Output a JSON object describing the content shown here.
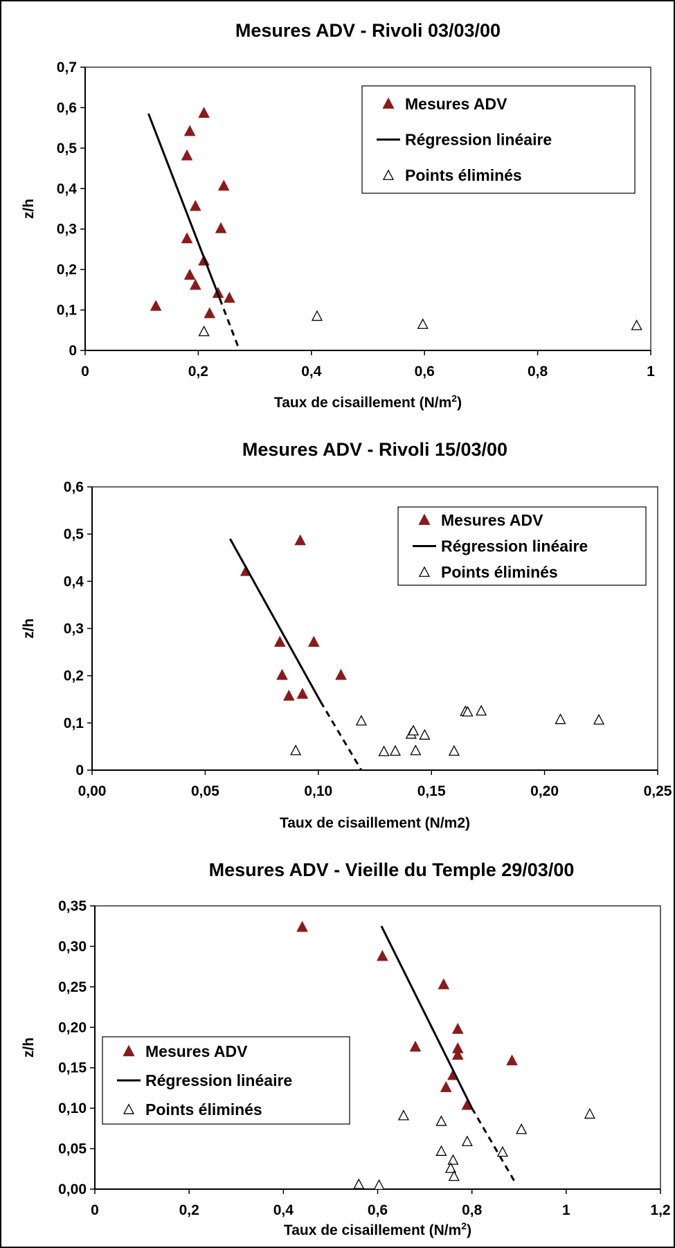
{
  "chart_data": [
    {
      "type": "scatter",
      "title": "Mesures ADV - Rivoli 03/03/00",
      "xlabel": "Taux de cisaillement (N/m",
      "xlabel_sup": "2",
      "xlabel_end": ")",
      "ylabel": "z/h",
      "xlim": [
        0,
        1
      ],
      "ylim": [
        0,
        0.7
      ],
      "xticks": [
        0,
        0.2,
        0.4,
        0.6,
        0.8,
        1
      ],
      "xtick_labels": [
        "0",
        "0,2",
        "0,4",
        "0,6",
        "0,8",
        "1"
      ],
      "yticks": [
        0,
        0.1,
        0.2,
        0.3,
        0.4,
        0.5,
        0.6,
        0.7
      ],
      "ytick_labels": [
        "0",
        "0,1",
        "0,2",
        "0,3",
        "0,4",
        "0,5",
        "0,6",
        "0,7"
      ],
      "legend_position": "top-right",
      "grid": false,
      "series": [
        {
          "name": "Mesures ADV",
          "marker": "filled-triangle",
          "color": "#8B1A1A",
          "points": [
            [
              0.21,
              0.585
            ],
            [
              0.185,
              0.54
            ],
            [
              0.18,
              0.48
            ],
            [
              0.245,
              0.405
            ],
            [
              0.195,
              0.355
            ],
            [
              0.24,
              0.3
            ],
            [
              0.18,
              0.275
            ],
            [
              0.21,
              0.22
            ],
            [
              0.185,
              0.185
            ],
            [
              0.195,
              0.16
            ],
            [
              0.235,
              0.14
            ],
            [
              0.255,
              0.128
            ],
            [
              0.125,
              0.108
            ],
            [
              0.22,
              0.09
            ]
          ]
        },
        {
          "name": "Régression linéaire",
          "marker": "line",
          "color": "#000000",
          "solid": [
            [
              0.112,
              0.585
            ],
            [
              0.238,
              0.128
            ]
          ],
          "dashed": [
            [
              0.238,
              0.128
            ],
            [
              0.273,
              0.0
            ]
          ]
        },
        {
          "name": "Points éliminés",
          "marker": "open-triangle",
          "color": "#000000",
          "points": [
            [
              0.21,
              0.045
            ],
            [
              0.41,
              0.083
            ],
            [
              0.597,
              0.063
            ],
            [
              0.975,
              0.06
            ]
          ]
        }
      ]
    },
    {
      "type": "scatter",
      "title": "Mesures ADV - Rivoli 15/03/00",
      "xlabel": "Taux de cisaillement (N/m2)",
      "ylabel": "z/h",
      "xlim": [
        0,
        0.25
      ],
      "ylim": [
        0,
        0.6
      ],
      "xticks": [
        0,
        0.05,
        0.1,
        0.15,
        0.2,
        0.25
      ],
      "xtick_labels": [
        "0,00",
        "0,05",
        "0,10",
        "0,15",
        "0,20",
        "0,25"
      ],
      "yticks": [
        0,
        0.1,
        0.2,
        0.3,
        0.4,
        0.5,
        0.6
      ],
      "ytick_labels": [
        "0",
        "0,1",
        "0,2",
        "0,3",
        "0,4",
        "0,5",
        "0,6"
      ],
      "legend_position": "top-right",
      "grid": false,
      "series": [
        {
          "name": "Mesures ADV",
          "marker": "filled-triangle",
          "color": "#8B1A1A",
          "points": [
            [
              0.092,
              0.485
            ],
            [
              0.068,
              0.42
            ],
            [
              0.083,
              0.27
            ],
            [
              0.098,
              0.27
            ],
            [
              0.084,
              0.2
            ],
            [
              0.11,
              0.2
            ],
            [
              0.087,
              0.156
            ],
            [
              0.093,
              0.16
            ]
          ]
        },
        {
          "name": "Régression linéaire",
          "marker": "line",
          "color": "#000000",
          "solid": [
            [
              0.061,
              0.49
            ],
            [
              0.101,
              0.145
            ]
          ],
          "dashed": [
            [
              0.101,
              0.145
            ],
            [
              0.119,
              0.0
            ]
          ]
        },
        {
          "name": "Points éliminés",
          "marker": "open-triangle",
          "color": "#000000",
          "points": [
            [
              0.09,
              0.04
            ],
            [
              0.119,
              0.103
            ],
            [
              0.129,
              0.038
            ],
            [
              0.134,
              0.039
            ],
            [
              0.141,
              0.075
            ],
            [
              0.142,
              0.082
            ],
            [
              0.143,
              0.04
            ],
            [
              0.147,
              0.073
            ],
            [
              0.16,
              0.039
            ],
            [
              0.165,
              0.123
            ],
            [
              0.166,
              0.122
            ],
            [
              0.172,
              0.124
            ],
            [
              0.207,
              0.106
            ],
            [
              0.224,
              0.105
            ]
          ]
        }
      ]
    },
    {
      "type": "scatter",
      "title": "Mesures ADV - Vieille du Temple 29/03/00",
      "xlabel": "Taux de cisaillement (N/m",
      "xlabel_sup": "2",
      "xlabel_end": ")",
      "ylabel": "z/h",
      "xlim": [
        0,
        1.2
      ],
      "ylim": [
        0,
        0.35
      ],
      "xticks": [
        0,
        0.2,
        0.4,
        0.6,
        0.8,
        1,
        1.2
      ],
      "xtick_labels": [
        "0",
        "0,2",
        "0,4",
        "0,6",
        "0,8",
        "1",
        "1,2"
      ],
      "yticks": [
        0,
        0.05,
        0.1,
        0.15,
        0.2,
        0.25,
        0.3,
        0.35
      ],
      "ytick_labels": [
        "0,00",
        "0,05",
        "0,10",
        "0,15",
        "0,20",
        "0,25",
        "0,30",
        "0,35"
      ],
      "legend_position": "middle-left",
      "grid": false,
      "series": [
        {
          "name": "Mesures ADV",
          "marker": "filled-triangle",
          "color": "#8B1A1A",
          "points": [
            [
              0.44,
              0.323
            ],
            [
              0.61,
              0.287
            ],
            [
              0.74,
              0.252
            ],
            [
              0.77,
              0.197
            ],
            [
              0.68,
              0.175
            ],
            [
              0.77,
              0.173
            ],
            [
              0.77,
              0.165
            ],
            [
              0.885,
              0.158
            ],
            [
              0.76,
              0.14
            ],
            [
              0.745,
              0.125
            ],
            [
              0.79,
              0.103
            ]
          ]
        },
        {
          "name": "Régression linéaire",
          "marker": "line",
          "color": "#000000",
          "solid": [
            [
              0.608,
              0.325
            ],
            [
              0.8,
              0.1
            ]
          ],
          "dashed": [
            [
              0.8,
              0.1
            ],
            [
              0.89,
              0.01
            ]
          ]
        },
        {
          "name": "Points éliminés",
          "marker": "open-triangle",
          "color": "#000000",
          "points": [
            [
              0.655,
              0.09
            ],
            [
              0.735,
              0.083
            ],
            [
              1.05,
              0.092
            ],
            [
              0.905,
              0.073
            ],
            [
              0.79,
              0.058
            ],
            [
              0.735,
              0.046
            ],
            [
              0.865,
              0.045
            ],
            [
              0.76,
              0.035
            ],
            [
              0.755,
              0.025
            ],
            [
              0.762,
              0.015
            ],
            [
              0.56,
              0.005
            ],
            [
              0.603,
              0.004
            ]
          ]
        }
      ]
    }
  ]
}
